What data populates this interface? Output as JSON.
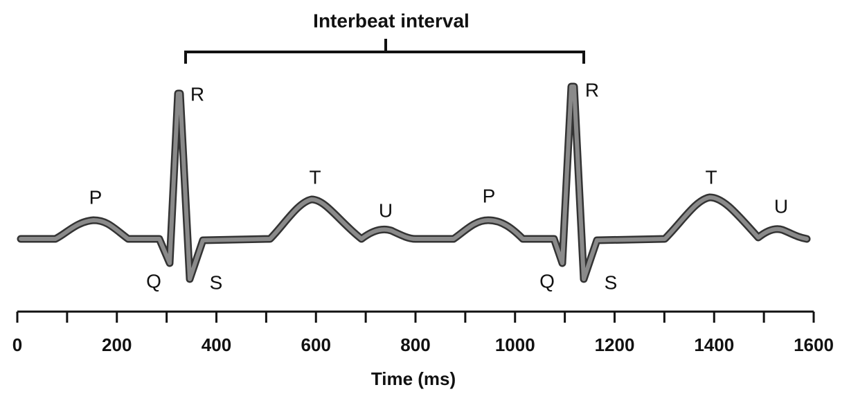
{
  "title": "Interbeat interval",
  "wave_labels": [
    "P",
    "R",
    "Q",
    "S",
    "T",
    "U",
    "P",
    "R",
    "Q",
    "S",
    "T",
    "U"
  ],
  "axis": {
    "ticks": [
      "0",
      "200",
      "400",
      "600",
      "800",
      "1000",
      "1200",
      "1400",
      "1600"
    ],
    "label": "Time (ms)"
  }
}
